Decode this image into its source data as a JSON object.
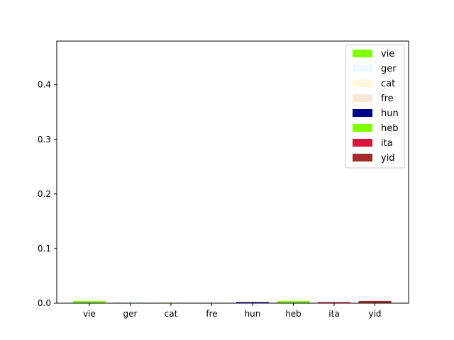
{
  "chart_data": {
    "type": "bar",
    "title": "",
    "xlabel": "",
    "ylabel": "",
    "categories": [
      "vie",
      "ger",
      "cat",
      "fre",
      "hun",
      "heb",
      "ita",
      "yid"
    ],
    "values": [
      0.004,
      0.003,
      0.002,
      0.001,
      0.002,
      0.004,
      0.002,
      0.004
    ],
    "colors": [
      "#7fff00",
      "#f0f8ff",
      "#fff8dc",
      "#fae8d4",
      "#00008b",
      "#7fff00",
      "#dc143c",
      "#a52a2a"
    ],
    "ylim": [
      0,
      0.48
    ],
    "yticks": [
      0.0,
      0.1,
      0.2,
      0.3,
      0.4
    ],
    "ytick_labels": [
      "0.0",
      "0.1",
      "0.2",
      "0.3",
      "0.4"
    ],
    "grid": false,
    "legend": {
      "placement": "top-right",
      "entries": [
        "vie",
        "ger",
        "cat",
        "fre",
        "hun",
        "heb",
        "ita",
        "yid"
      ]
    }
  }
}
